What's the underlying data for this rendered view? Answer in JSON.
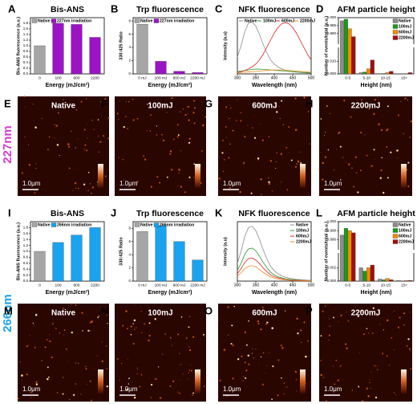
{
  "row_labels": [
    "227nm",
    "266nm"
  ],
  "chart_data": [
    {
      "type": "bar",
      "letter": "A",
      "title": "Bis-ANS",
      "ylabel": "Bis-ANS fluorescence (a.u.)",
      "xlabel": "Energy (mJ/cm²)",
      "categories": [
        "0",
        "100",
        "600",
        "2200"
      ],
      "series": [
        {
          "name": "Native",
          "color": "#a6a6a6",
          "values": [
            1.0,
            null,
            null,
            null
          ]
        },
        {
          "name": "227nm irradiation",
          "color": "#9b13c4",
          "values": [
            null,
            1.8,
            1.76,
            1.3
          ]
        }
      ],
      "ylim": [
        0,
        2.0
      ],
      "yticks": [
        {
          "value": 0,
          "label": "0.0"
        },
        0.2,
        0.4,
        0.6,
        0.8,
        {
          "value": 1,
          "label": "1.0"
        },
        1.2,
        1.4,
        1.6,
        1.8
      ],
      "legend": "upper left"
    },
    {
      "type": "bar",
      "letter": "B",
      "title": "Trp fluorescence",
      "ylabel": "330:425 Ratio",
      "xlabel": "Energy (mJ/cm²)",
      "categories": [
        "0 mJ",
        "100 mJ",
        "600 mJ",
        "2200 mJ"
      ],
      "series": [
        {
          "name": "Native",
          "color": "#a6a6a6",
          "values": [
            7.5,
            null,
            null,
            null
          ]
        },
        {
          "name": "227nm irradiation",
          "color": "#9b13c4",
          "values": [
            null,
            1.9,
            0.4,
            0.2
          ]
        }
      ],
      "ylim": [
        0,
        8.5
      ],
      "yticks": [
        0,
        2,
        4,
        6,
        8
      ],
      "legend": "upper left"
    },
    {
      "type": "line",
      "letter": "C",
      "title": "NFK fluorescence",
      "ylabel": "Intensity (a.u)",
      "xlabel": "Wavelength (nm)",
      "x": [
        300,
        310,
        320,
        330,
        340,
        350,
        360,
        370,
        380,
        390,
        400,
        410,
        420,
        430,
        440,
        450,
        460,
        470,
        480,
        490,
        500
      ],
      "series": [
        {
          "name": "Native",
          "color": "#8c8c8c",
          "values": [
            60,
            100,
            150,
            180,
            185,
            170,
            140,
            105,
            75,
            50,
            35,
            25,
            18,
            13,
            10,
            8,
            6,
            5,
            4,
            3,
            3
          ]
        },
        {
          "name": "100mJ",
          "color": "#2a9d2a",
          "values": [
            8,
            10,
            12,
            14,
            16,
            17,
            17,
            16,
            15,
            14,
            13,
            12,
            11,
            10,
            9,
            8,
            7,
            6,
            5,
            5,
            4
          ]
        },
        {
          "name": "600mJ",
          "color": "#e02020",
          "values": [
            5,
            8,
            12,
            18,
            25,
            35,
            50,
            70,
            95,
            120,
            145,
            165,
            178,
            182,
            178,
            165,
            145,
            120,
            95,
            70,
            50
          ]
        },
        {
          "name": "2200mJ",
          "color": "#f08c20",
          "values": [
            4,
            5,
            6,
            7,
            8,
            9,
            10,
            11,
            12,
            13,
            14,
            14,
            14,
            13,
            12,
            11,
            10,
            9,
            8,
            7,
            6
          ]
        }
      ],
      "xlim": [
        300,
        500
      ],
      "xticks": [
        300,
        350,
        400,
        450,
        500
      ],
      "ylim": [
        0,
        200
      ],
      "legend": "top"
    },
    {
      "type": "bar",
      "letter": "D",
      "title": "AFM particle height",
      "ylabel": "Number of events/total (a.u.)",
      "xlabel": "Height (nm)",
      "categories": [
        "0-5",
        "5-10",
        "10-15",
        "15+"
      ],
      "series": [
        {
          "name": "Native",
          "color": "#8c8c8c",
          "values": [
            0.998,
            0.001,
            0.0002,
            0
          ]
        },
        {
          "name": "100mJ",
          "color": "#1a9a1a",
          "values": [
            0.999,
            0.0015,
            0.0003,
            0.0001
          ]
        },
        {
          "name": "600mJ",
          "color": "#f08c00",
          "values": [
            0.993,
            0.004,
            0.001,
            0.0002
          ]
        },
        {
          "name": "2200mJ",
          "color": "#a01010",
          "values": [
            0.988,
            0.011,
            0.002,
            0.001
          ]
        }
      ],
      "ylim": [
        0,
        1.0
      ],
      "ybreak": [
        0.02,
        0.984
      ],
      "yticks": [
        {
          "value": 0,
          "label": "0.000"
        },
        {
          "value": 0.01,
          "label": "0.010"
        },
        {
          "value": 0.99,
          "label": "0.990"
        },
        0.995,
        {
          "value": 1,
          "label": "1.000"
        }
      ],
      "legend": "upper right"
    },
    {
      "type": "bar",
      "letter": "I",
      "title": "Bis-ANS",
      "ylabel": "Bis-ANS fluorescence (a.u.)",
      "xlabel": "Energy (mJ/cm²)",
      "categories": [
        "0",
        "100",
        "600",
        "2200"
      ],
      "series": [
        {
          "name": "Native",
          "color": "#a6a6a6",
          "values": [
            1.0,
            null,
            null,
            null
          ]
        },
        {
          "name": "266nm irradiation",
          "color": "#1aa3ee",
          "values": [
            null,
            1.3,
            1.55,
            1.8
          ]
        }
      ],
      "ylim": [
        0,
        2.0
      ],
      "yticks": [
        {
          "value": 0,
          "label": "0.0"
        },
        0.2,
        0.4,
        0.6,
        0.8,
        {
          "value": 1,
          "label": "1.0"
        },
        1.2,
        1.4,
        1.6,
        1.8
      ],
      "legend": "upper left"
    },
    {
      "type": "bar",
      "letter": "J",
      "title": "Trp fluorescence",
      "ylabel": "330:425 Ratio",
      "xlabel": "Energy (mJ/cm²)",
      "categories": [
        "0 mJ",
        "100 mJ",
        "600 mJ",
        "2200 mJ"
      ],
      "series": [
        {
          "name": "Native",
          "color": "#a6a6a6",
          "values": [
            7.5,
            null,
            null,
            null
          ]
        },
        {
          "name": "266nm irradiation",
          "color": "#1aa3ee",
          "values": [
            null,
            8.4,
            6.0,
            3.2
          ]
        }
      ],
      "ylim": [
        0,
        9
      ],
      "yticks": [
        0,
        2,
        4,
        6,
        8
      ],
      "legend": "upper left"
    },
    {
      "type": "line",
      "letter": "K",
      "title": "NFK fluorescence",
      "ylabel": "Intensity (a.u)",
      "xlabel": "Wavelength (nm)",
      "x": [
        300,
        310,
        320,
        330,
        340,
        350,
        360,
        370,
        380,
        390,
        400,
        410,
        420,
        430,
        440,
        450,
        460,
        470,
        480,
        490,
        500
      ],
      "series": [
        {
          "name": "Native",
          "color": "#8c8c8c",
          "values": [
            60,
            100,
            150,
            180,
            185,
            170,
            140,
            105,
            75,
            50,
            35,
            25,
            18,
            13,
            10,
            8,
            6,
            5,
            4,
            3,
            3
          ]
        },
        {
          "name": "100mJ",
          "color": "#2a9d2a",
          "values": [
            36,
            60,
            90,
            108,
            111,
            102,
            84,
            63,
            45,
            30,
            21,
            15,
            11,
            8,
            6,
            5,
            4,
            3,
            2,
            2,
            2
          ]
        },
        {
          "name": "600mJ",
          "color": "#e02020",
          "values": [
            25,
            42,
            63,
            76,
            78,
            71,
            59,
            44,
            32,
            21,
            15,
            11,
            8,
            5,
            4,
            3,
            3,
            2,
            2,
            1,
            1
          ]
        },
        {
          "name": "2200mJ",
          "color": "#f08c20",
          "values": [
            17,
            28,
            42,
            50,
            52,
            48,
            39,
            29,
            21,
            14,
            10,
            7,
            5,
            4,
            3,
            2,
            2,
            1,
            1,
            1,
            1
          ]
        }
      ],
      "xlim": [
        300,
        500
      ],
      "xticks": [
        300,
        350,
        400,
        450,
        500
      ],
      "ylim": [
        0,
        200
      ],
      "legend": "upper right"
    },
    {
      "type": "bar",
      "letter": "L",
      "title": "AFM particle height",
      "ylabel": "Number of events/total (a.u.)",
      "xlabel": "Height (nm)",
      "categories": [
        "0-5",
        "5-10",
        "10-15",
        "15+"
      ],
      "series": [
        {
          "name": "Native",
          "color": "#8c8c8c",
          "values": [
            0.997,
            0.002,
            0.0003,
            0.0001
          ]
        },
        {
          "name": "100mJ",
          "color": "#1a9a1a",
          "values": [
            0.9985,
            0.0015,
            0.0002,
            0
          ]
        },
        {
          "name": "600mJ",
          "color": "#f08c00",
          "values": [
            0.998,
            0.002,
            0.0004,
            0.0001
          ]
        },
        {
          "name": "2200mJ",
          "color": "#a01010",
          "values": [
            0.9975,
            0.0024,
            0.0002,
            0.0001
          ]
        }
      ],
      "ylim": [
        0,
        1.0
      ],
      "ybreak": [
        0.004,
        0.994
      ],
      "yticks": [
        {
          "value": 0,
          "label": "0.000"
        },
        0.002,
        0.996,
        0.998,
        {
          "value": 1,
          "label": "1.000"
        }
      ],
      "legend": "upper right"
    }
  ],
  "images": [
    {
      "letter": "E",
      "label": "Native",
      "scale_bar": "1.0μm"
    },
    {
      "letter": "F",
      "label": "100mJ",
      "scale_bar": "1.0μm"
    },
    {
      "letter": "G",
      "label": "600mJ",
      "scale_bar": "1.0μm"
    },
    {
      "letter": "H",
      "label": "2200mJ",
      "scale_bar": "1.0μm"
    },
    {
      "letter": "M",
      "label": "Native",
      "scale_bar": "1.0μm"
    },
    {
      "letter": "N",
      "label": "100mJ",
      "scale_bar": "1.0μm"
    },
    {
      "letter": "O",
      "label": "600mJ",
      "scale_bar": "1.0μm"
    },
    {
      "letter": "P",
      "label": "2200mJ",
      "scale_bar": "1.0μm"
    }
  ]
}
